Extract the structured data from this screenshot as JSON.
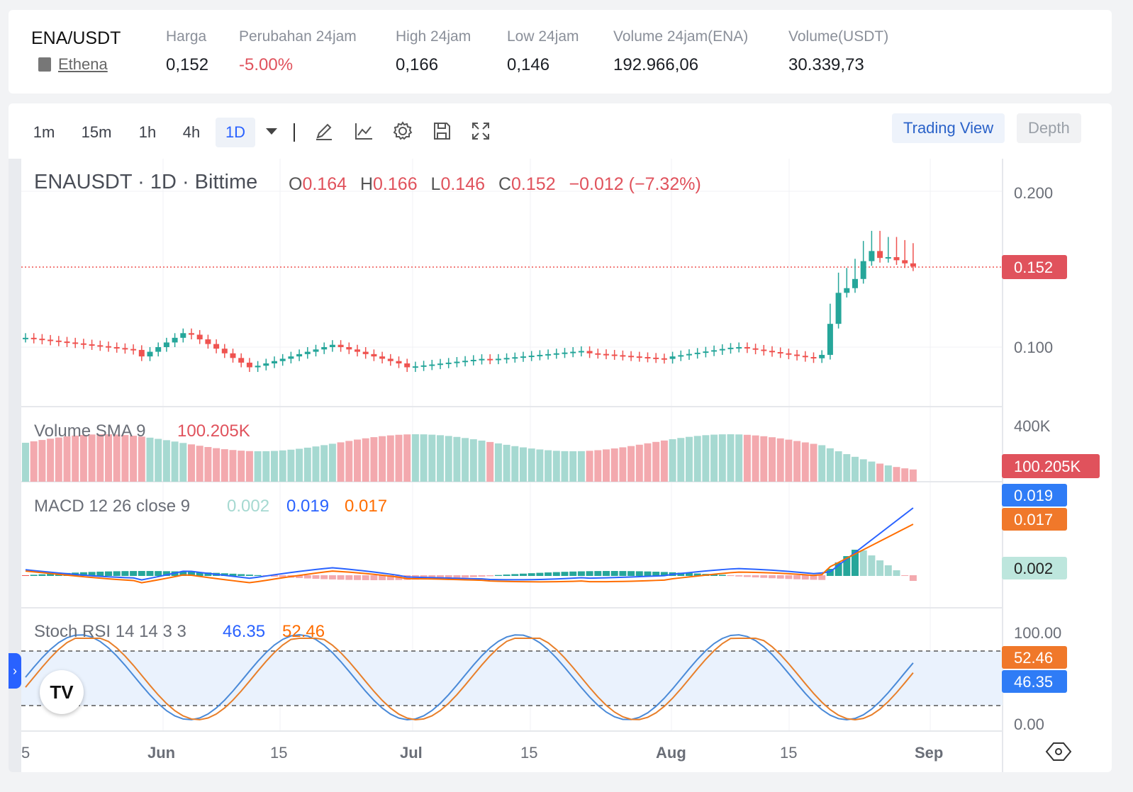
{
  "ticker": {
    "pair": "ENA/USDT",
    "coin_name": "Ethena",
    "stats": [
      {
        "label": "Harga",
        "value": "0,152",
        "negative": false
      },
      {
        "label": "Perubahan 24jam",
        "value": "-5.00%",
        "negative": true
      },
      {
        "label": "High 24jam",
        "value": "0,166",
        "negative": false
      },
      {
        "label": "Low 24jam",
        "value": "0,146",
        "negative": false
      },
      {
        "label": "Volume 24jam(ENA)",
        "value": "192.966,06",
        "negative": false
      },
      {
        "label": "Volume(USDT)",
        "value": "30.339,73",
        "negative": false
      }
    ]
  },
  "toolbar": {
    "timeframes": [
      "1m",
      "15m",
      "1h",
      "4h",
      "1D"
    ],
    "active_timeframe": "1D",
    "tools": [
      "pencil-icon",
      "line-chart-icon",
      "gear-icon",
      "save-icon",
      "fullscreen-icon"
    ],
    "trading_view_label": "Trading View",
    "depth_label": "Depth"
  },
  "legend": {
    "symbol": "ENAUSDT · 1D · Bittime",
    "o_label": "O",
    "o": "0.164",
    "h_label": "H",
    "h": "0.166",
    "l_label": "L",
    "l": "0.146",
    "c_label": "C",
    "c": "0.152",
    "change": "−0.012 (−7.32%)"
  },
  "indicators": {
    "volume": {
      "label": "Volume SMA 9",
      "value": "100.205K"
    },
    "macd": {
      "label": "MACD 12 26 close 9",
      "hist": "0.002",
      "macd": "0.019",
      "signal": "0.017"
    },
    "stoch": {
      "label": "Stoch RSI 14 14 3 3",
      "k": "46.35",
      "d": "52.46"
    }
  },
  "chart_data": {
    "type": "candlestick",
    "price_axis": {
      "ticks": [
        "0.200",
        "0.100"
      ],
      "last_price": "0.152"
    },
    "volume_axis": {
      "ticks": [
        "400K"
      ],
      "last_value": "100.205K"
    },
    "macd_axis": {
      "macd": "0.019",
      "signal": "0.017",
      "hist": "0.002"
    },
    "stoch_axis": {
      "ticks": [
        "100.00",
        "0.00"
      ],
      "d": "52.46",
      "k": "46.35"
    },
    "x_ticks": [
      "5",
      "Jun",
      "15",
      "Jul",
      "15",
      "Aug",
      "15",
      "Sep"
    ],
    "colors": {
      "up": "#26a69a",
      "down": "#ef5350",
      "macd": "#2962ff",
      "signal": "#ff6d00",
      "k": "#2962ff",
      "d": "#ff6d00"
    }
  }
}
